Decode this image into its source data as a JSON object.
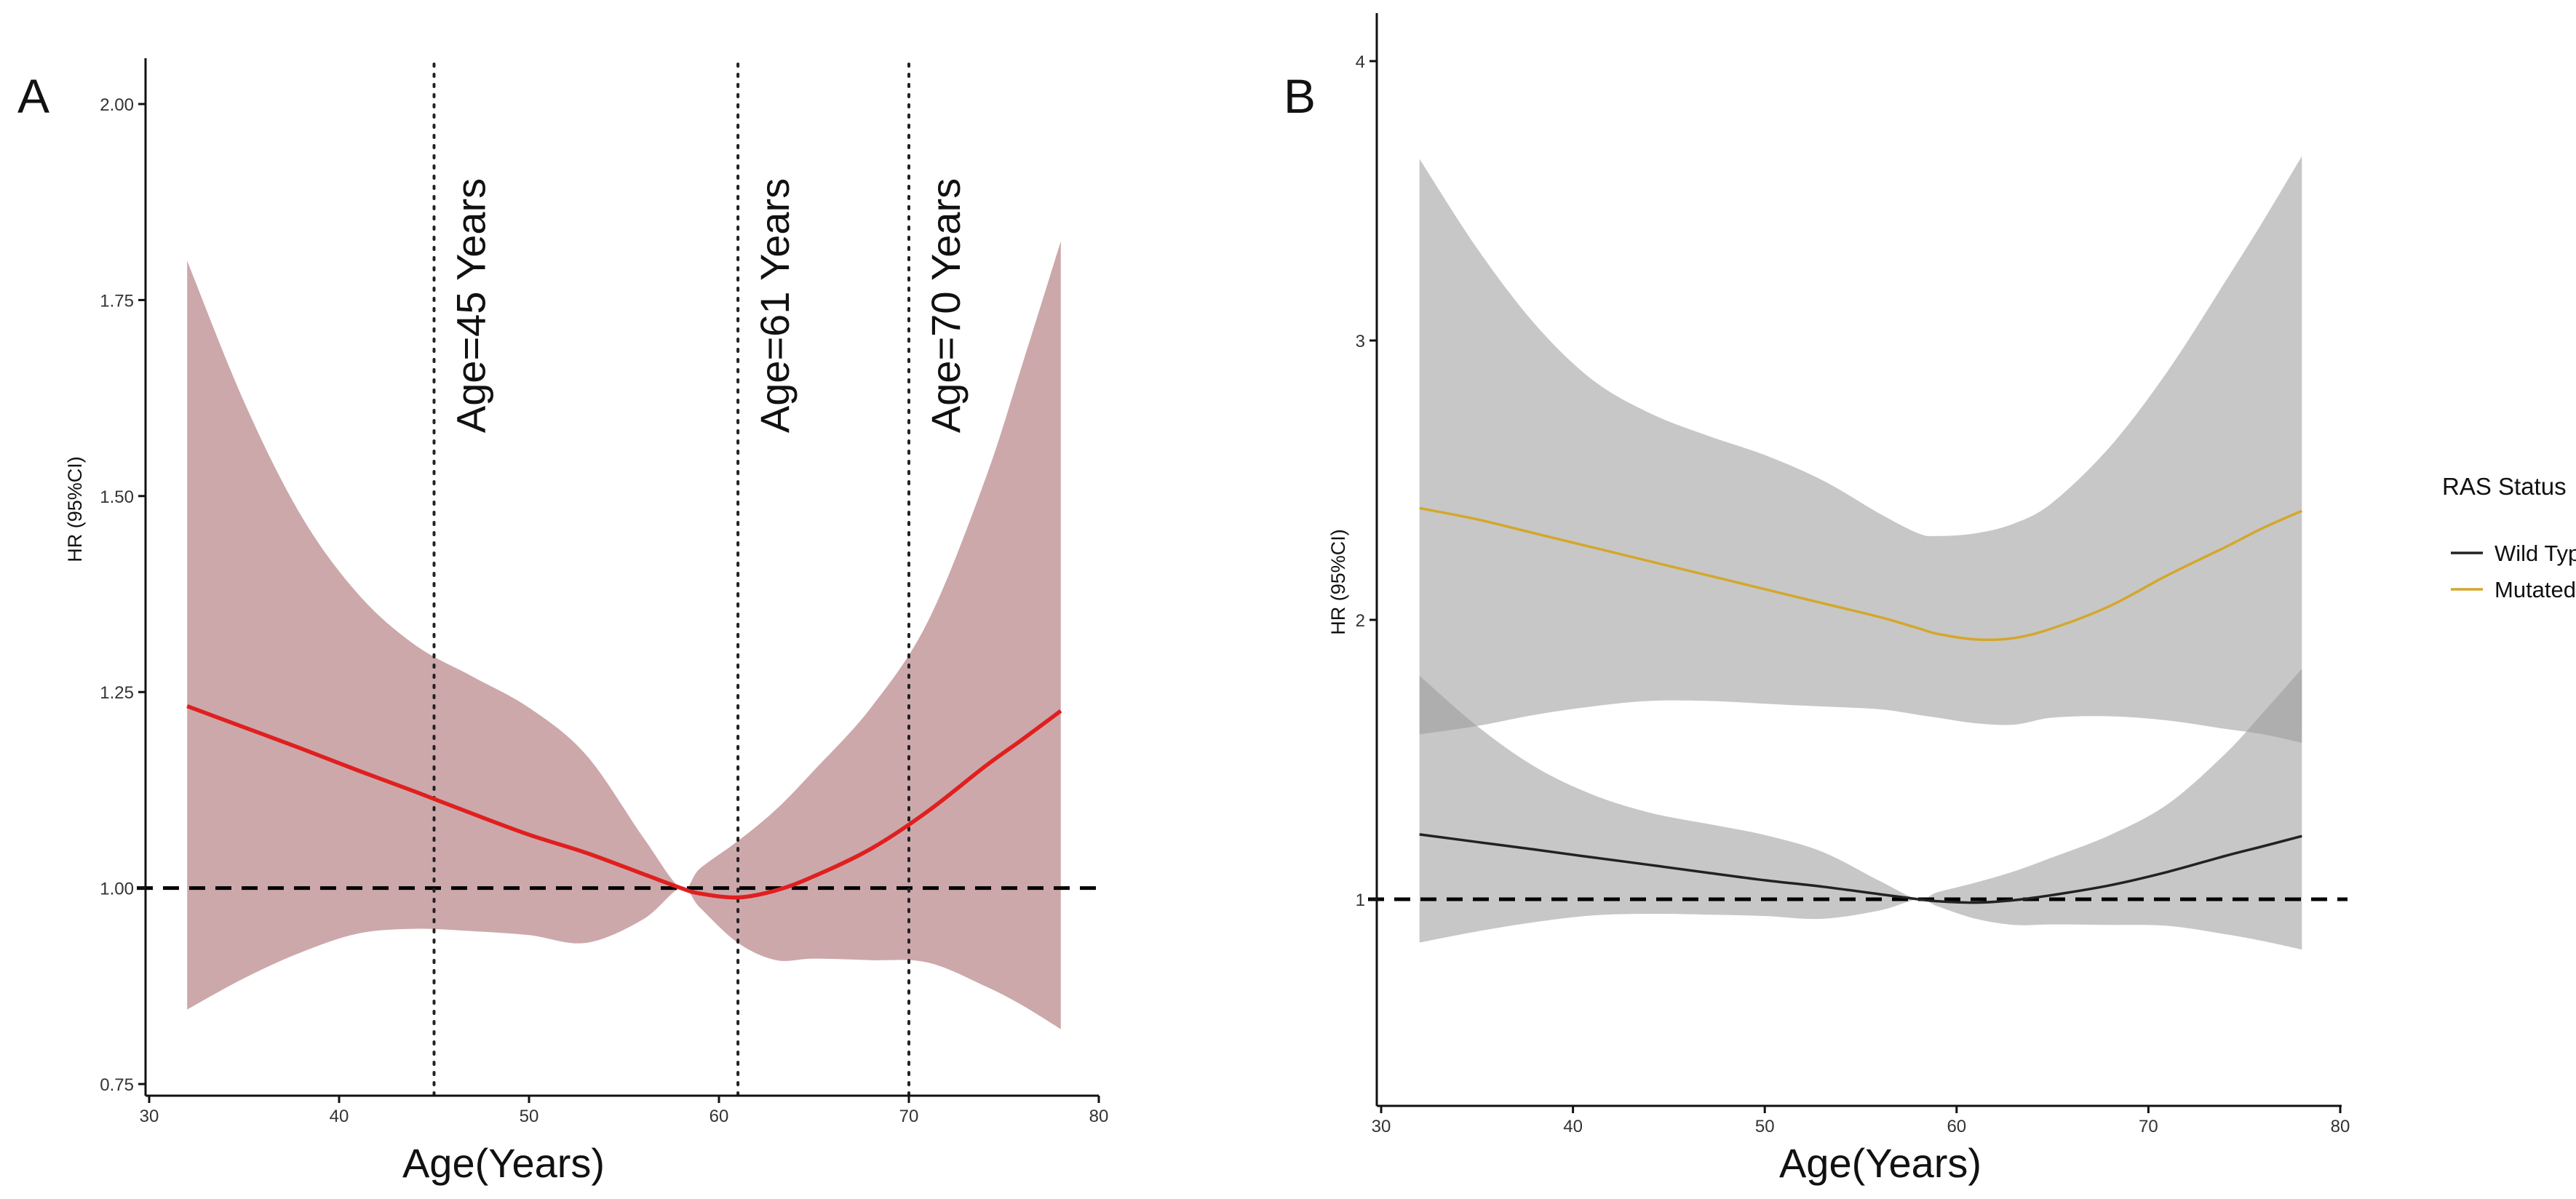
{
  "chart_data": [
    {
      "panel_label": "A",
      "type": "line",
      "xlabel": "Age(Years)",
      "ylabel": "HR (95%CI)",
      "xlim": [
        30,
        80
      ],
      "ylim": [
        0.75,
        2.05
      ],
      "x_ticks": [
        30,
        40,
        50,
        60,
        70,
        80
      ],
      "y_ticks": [
        0.75,
        1.0,
        1.25,
        1.5,
        1.75,
        2.0
      ],
      "y_tick_labels": [
        "0.75",
        "1.00",
        "1.25",
        "1.50",
        "1.75",
        "2.00"
      ],
      "grid": false,
      "reference_line": {
        "y": 1.0,
        "style": "dashed",
        "color": "#000000"
      },
      "vlines": [
        {
          "x": 45,
          "label": "Age=45 Years"
        },
        {
          "x": 61,
          "label": "Age=61 Years"
        },
        {
          "x": 70,
          "label": "Age=70 Years"
        }
      ],
      "series": [
        {
          "color": "#e01f1f",
          "band_color": "#b9878a",
          "x": [
            32,
            35,
            38,
            41,
            44,
            47,
            50,
            53,
            56,
            58,
            59,
            61,
            63,
            65,
            68,
            71,
            74,
            76,
            78
          ],
          "y": [
            1.232,
            1.205,
            1.178,
            1.15,
            1.123,
            1.095,
            1.068,
            1.045,
            1.018,
            1.0,
            0.993,
            0.988,
            0.997,
            1.015,
            1.05,
            1.098,
            1.155,
            1.19,
            1.226
          ],
          "lower": [
            0.845,
            0.885,
            0.918,
            0.942,
            0.948,
            0.945,
            0.94,
            0.93,
            0.96,
            1.0,
            0.975,
            0.93,
            0.908,
            0.91,
            0.908,
            0.905,
            0.875,
            0.85,
            0.82
          ],
          "upper": [
            1.8,
            1.62,
            1.475,
            1.375,
            1.31,
            1.27,
            1.23,
            1.17,
            1.065,
            1.0,
            1.025,
            1.06,
            1.1,
            1.15,
            1.23,
            1.34,
            1.52,
            1.67,
            1.825
          ]
        }
      ]
    },
    {
      "panel_label": "B",
      "type": "line",
      "xlabel": "Age(Years)",
      "ylabel": "HR (95%CI)",
      "xlim": [
        30,
        80
      ],
      "ylim": [
        0.3,
        4.2
      ],
      "x_ticks": [
        30,
        40,
        50,
        60,
        70,
        80
      ],
      "y_ticks": [
        1,
        2,
        3,
        4
      ],
      "y_tick_labels": [
        "1",
        "2",
        "3",
        "4"
      ],
      "grid": false,
      "reference_line": {
        "y": 1.0,
        "style": "dashed",
        "color": "#000000"
      },
      "legend": {
        "title": "RAS Status",
        "position": "right"
      },
      "series": [
        {
          "name": "Wild Type",
          "color": "#222222",
          "band_color": "#999999",
          "x": [
            32,
            35,
            38,
            41,
            44,
            47,
            50,
            53,
            56,
            58,
            59,
            61,
            63,
            65,
            68,
            71,
            74,
            76,
            78
          ],
          "y": [
            1.232,
            1.205,
            1.178,
            1.15,
            1.123,
            1.095,
            1.068,
            1.045,
            1.018,
            1.0,
            0.993,
            0.988,
            0.997,
            1.015,
            1.05,
            1.098,
            1.155,
            1.19,
            1.226
          ],
          "lower": [
            0.845,
            0.885,
            0.918,
            0.942,
            0.948,
            0.945,
            0.94,
            0.93,
            0.96,
            1.0,
            0.975,
            0.93,
            0.908,
            0.91,
            0.908,
            0.905,
            0.875,
            0.85,
            0.82
          ],
          "upper": [
            1.8,
            1.62,
            1.475,
            1.375,
            1.31,
            1.27,
            1.23,
            1.17,
            1.065,
            1.0,
            1.025,
            1.06,
            1.1,
            1.15,
            1.23,
            1.34,
            1.52,
            1.67,
            1.825
          ]
        },
        {
          "name": "Mutated",
          "color": "#d4a72c",
          "band_color": "#999999",
          "x": [
            32,
            35,
            38,
            41,
            44,
            47,
            50,
            53,
            56,
            58,
            59,
            61,
            63,
            65,
            68,
            71,
            74,
            76,
            78
          ],
          "y": [
            2.4,
            2.36,
            2.31,
            2.26,
            2.21,
            2.16,
            2.11,
            2.06,
            2.01,
            1.97,
            1.95,
            1.93,
            1.935,
            1.97,
            2.05,
            2.16,
            2.26,
            2.33,
            2.39
          ],
          "lower": [
            1.59,
            1.62,
            1.66,
            1.69,
            1.71,
            1.71,
            1.7,
            1.69,
            1.68,
            1.66,
            1.65,
            1.63,
            1.625,
            1.65,
            1.655,
            1.64,
            1.61,
            1.59,
            1.56
          ],
          "upper": [
            3.65,
            3.33,
            3.06,
            2.86,
            2.74,
            2.66,
            2.59,
            2.5,
            2.38,
            2.31,
            2.3,
            2.31,
            2.345,
            2.42,
            2.62,
            2.89,
            3.21,
            3.43,
            3.66
          ]
        }
      ]
    }
  ]
}
